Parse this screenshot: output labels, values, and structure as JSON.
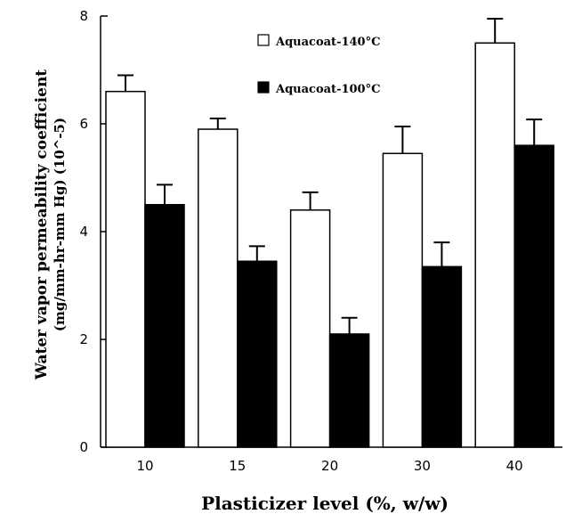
{
  "chart_data": {
    "type": "bar",
    "categories": [
      "10",
      "15",
      "20",
      "30",
      "40"
    ],
    "series": [
      {
        "name": "Aquacoat-140°C",
        "values": [
          6.6,
          5.9,
          4.4,
          5.45,
          7.5
        ],
        "errors": [
          0.3,
          0.2,
          0.33,
          0.5,
          0.45
        ],
        "fill": "#ffffff"
      },
      {
        "name": "Aquacoat-100°C",
        "values": [
          4.5,
          3.45,
          2.1,
          3.35,
          5.6
        ],
        "errors": [
          0.37,
          0.28,
          0.3,
          0.45,
          0.48
        ],
        "fill": "#000000"
      }
    ],
    "ylim": [
      0,
      8
    ],
    "yticks": [
      "0",
      "2",
      "4",
      "6",
      "8"
    ],
    "xlabel": "Plasticizer level (%, w/w)",
    "ylabel_line1": "Water vapor permeability coefficient",
    "ylabel_line2": "(mg/mm-hr-mm Hg) (10^-5)",
    "legend_position": "top-center",
    "grid": false
  }
}
